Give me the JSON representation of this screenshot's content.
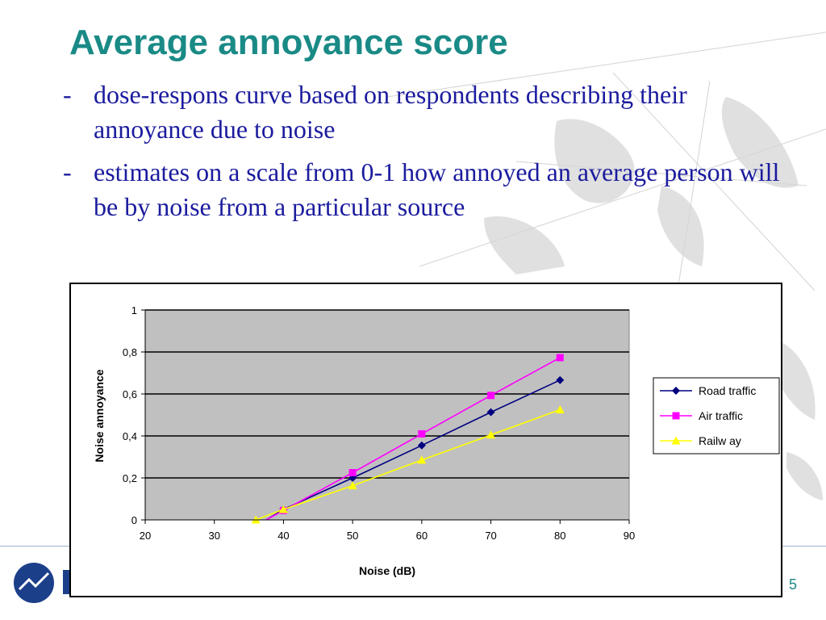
{
  "slide": {
    "title": "Average annoyance score",
    "bullets": [
      {
        "dash": "-",
        "text": "dose-respons curve based on respondents describing their annoyance due to noise"
      },
      {
        "dash": "-",
        "text": "estimates on a scale from 0-1 how annoyed an average person will be by noise from a particular source"
      }
    ],
    "page_number": "5",
    "colors": {
      "title": "#1a8a86",
      "text": "#1b1b9e",
      "plot_bg": "#c0c0c0"
    }
  },
  "chart_data": {
    "type": "line",
    "title": "",
    "xlabel": "Noise (dB)",
    "ylabel": "Noise annoyance",
    "xlim": [
      20,
      90
    ],
    "ylim": [
      0,
      1
    ],
    "xticks": [
      20,
      30,
      40,
      50,
      60,
      70,
      80,
      90
    ],
    "yticks": [
      0,
      0.2,
      0.4,
      0.6,
      0.8,
      1
    ],
    "ytick_labels": [
      "0",
      "0,2",
      "0,4",
      "0,6",
      "0,8",
      "1"
    ],
    "grid": "horizontal",
    "legend_position": "right",
    "series": [
      {
        "name": "Road traffic",
        "color": "#000080",
        "marker": "diamond",
        "points": [
          [
            40,
            0.05
          ],
          [
            50,
            0.2
          ],
          [
            60,
            0.355
          ],
          [
            70,
            0.513
          ],
          [
            80,
            0.666
          ]
        ],
        "line_start": [
          37.5,
          0
        ]
      },
      {
        "name": "Air traffic",
        "color": "#ff00ff",
        "marker": "square",
        "points": [
          [
            40,
            0.045
          ],
          [
            50,
            0.225
          ],
          [
            60,
            0.41
          ],
          [
            70,
            0.593
          ],
          [
            80,
            0.773
          ]
        ],
        "line_start": [
          37.5,
          0
        ]
      },
      {
        "name": "Railw ay",
        "color": "#ffff00",
        "marker": "triangle",
        "points": [
          [
            36,
            0.0
          ],
          [
            40,
            0.05
          ],
          [
            50,
            0.163
          ],
          [
            60,
            0.285
          ],
          [
            70,
            0.405
          ],
          [
            80,
            0.525
          ]
        ]
      }
    ]
  }
}
